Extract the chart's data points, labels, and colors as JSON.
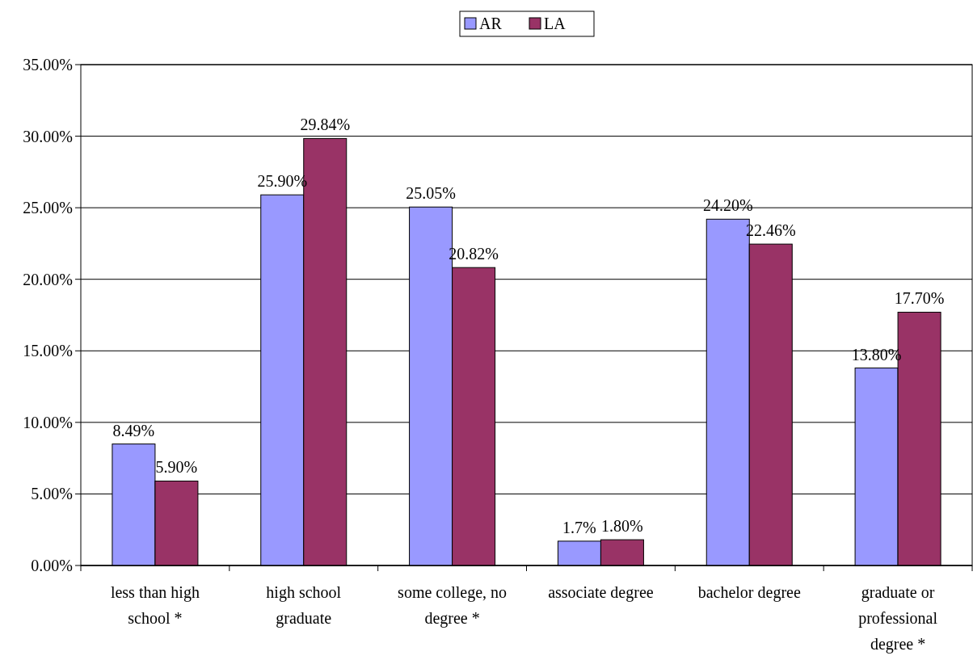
{
  "chart_data": {
    "type": "bar",
    "categories": [
      "less than high school *",
      "high school graduate",
      "some college, no degree *",
      "associate degree",
      "bachelor degree",
      "graduate or professional degree *"
    ],
    "series": [
      {
        "name": "AR",
        "color": "#9999ff",
        "values": [
          8.49,
          25.9,
          25.05,
          1.7,
          24.2,
          13.8
        ],
        "value_labels": [
          "8.49%",
          "25.90%",
          "25.05%",
          "1.7%",
          "24.20%",
          "13.80%"
        ]
      },
      {
        "name": "LA",
        "color": "#993366",
        "values": [
          5.9,
          29.84,
          20.82,
          1.8,
          22.46,
          17.7
        ],
        "value_labels": [
          "5.90%",
          "29.84%",
          "20.82%",
          "1.80%",
          "22.46%",
          "17.70%"
        ]
      }
    ],
    "ylim": [
      0,
      35
    ],
    "yticks": [
      {
        "value": 0,
        "label": "0.00%"
      },
      {
        "value": 5,
        "label": "5.00%"
      },
      {
        "value": 10,
        "label": "10.00%"
      },
      {
        "value": 15,
        "label": "15.00%"
      },
      {
        "value": 20,
        "label": "20.00%"
      },
      {
        "value": 25,
        "label": "25.00%"
      },
      {
        "value": 30,
        "label": "30.00%"
      },
      {
        "value": 35,
        "label": "35.00%"
      }
    ],
    "grid": "y",
    "legend": "top"
  }
}
